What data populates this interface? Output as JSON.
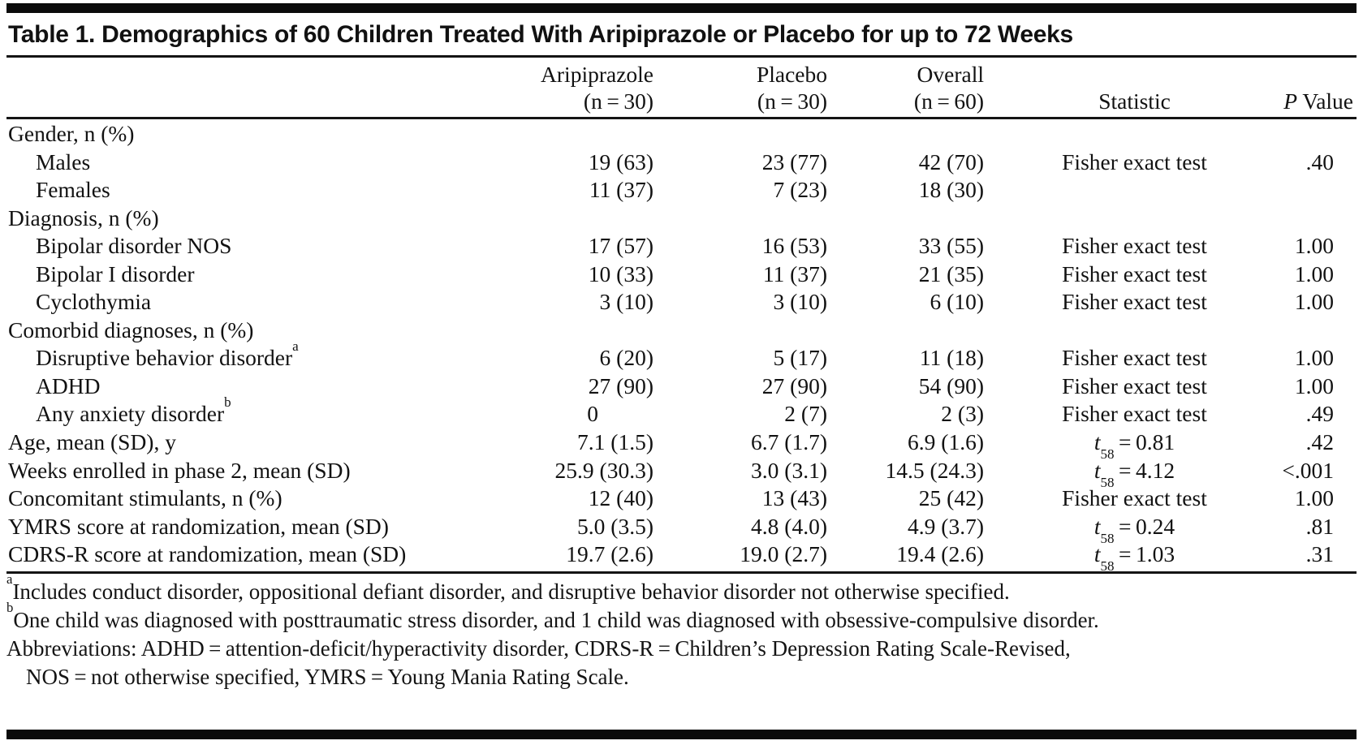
{
  "title": "Table 1. Demographics of 60 Children Treated With Aripiprazole or Placebo for up to 72 Weeks",
  "header": {
    "columns": [
      {
        "line1": "Aripiprazole",
        "line2": "(n = 30)"
      },
      {
        "line1": "Placebo",
        "line2": "(n = 30)"
      },
      {
        "line1": "Overall",
        "line2": "(n = 60)"
      },
      {
        "line1": "",
        "line2": "Statistic"
      },
      {
        "line1": "",
        "line2": "*P* Value"
      }
    ]
  },
  "rows": [
    {
      "label": "Gender, n (%)",
      "indent": 0,
      "arip": "",
      "placebo": "",
      "overall": "",
      "stat": "",
      "p": ""
    },
    {
      "label": "Males",
      "indent": 1,
      "arip": "19 (63)",
      "placebo": "23 (77)",
      "overall": "42 (70)",
      "stat": "Fisher exact test",
      "p": ".40"
    },
    {
      "label": "Females",
      "indent": 1,
      "arip": "11 (37)",
      "placebo": "7 (23)",
      "overall": "18 (30)",
      "stat": "",
      "p": ""
    },
    {
      "label": "Diagnosis, n (%)",
      "indent": 0,
      "arip": "",
      "placebo": "",
      "overall": "",
      "stat": "",
      "p": ""
    },
    {
      "label": "Bipolar disorder NOS",
      "indent": 1,
      "arip": "17 (57)",
      "placebo": "16 (53)",
      "overall": "33 (55)",
      "stat": "Fisher exact test",
      "p": "1.00"
    },
    {
      "label": "Bipolar I disorder",
      "indent": 1,
      "arip": "10 (33)",
      "placebo": "11 (37)",
      "overall": "21 (35)",
      "stat": "Fisher exact test",
      "p": "1.00"
    },
    {
      "label": "Cyclothymia",
      "indent": 1,
      "arip": "3 (10)",
      "placebo": "3 (10)",
      "overall": "6 (10)",
      "stat": "Fisher exact test",
      "p": "1.00"
    },
    {
      "label": "Comorbid diagnoses, n (%)",
      "indent": 0,
      "arip": "",
      "placebo": "",
      "overall": "",
      "stat": "",
      "p": ""
    },
    {
      "label": "Disruptive behavior disorder^{a}",
      "indent": 1,
      "arip": "6 (20)",
      "placebo": "5 (17)",
      "overall": "11 (18)",
      "stat": "Fisher exact test",
      "p": "1.00"
    },
    {
      "label": "ADHD",
      "indent": 1,
      "arip": "27 (90)",
      "placebo": "27 (90)",
      "overall": "54 (90)",
      "stat": "Fisher exact test",
      "p": "1.00"
    },
    {
      "label": "Any anxiety disorder^{b}",
      "indent": 1,
      "arip": "0",
      "arip_pad": "units",
      "placebo": "2 (7)",
      "overall": "2 (3)",
      "stat": "Fisher exact test",
      "p": ".49"
    },
    {
      "label": "Age, mean (SD), y",
      "indent": 0,
      "arip": "7.1 (1.5)",
      "placebo": "6.7 (1.7)",
      "overall": "6.9 (1.6)",
      "stat": "*t*_{58} = 0.81",
      "p": ".42"
    },
    {
      "label": "Weeks enrolled in phase 2, mean (SD)",
      "indent": 0,
      "arip": "25.9 (30.3)",
      "placebo": "3.0 (3.1)",
      "overall": "14.5 (24.3)",
      "stat": "*t*_{58} = 4.12",
      "p": "<.001"
    },
    {
      "label": "Concomitant stimulants, n (%)",
      "indent": 0,
      "arip": "12 (40)",
      "placebo": "13 (43)",
      "overall": "25 (42)",
      "stat": "Fisher exact test",
      "p": "1.00"
    },
    {
      "label": "YMRS score at randomization, mean (SD)",
      "indent": 0,
      "arip": "5.0 (3.5)",
      "placebo": "4.8 (4.0)",
      "overall": "4.9 (3.7)",
      "stat": "*t*_{58} = 0.24",
      "p": ".81"
    },
    {
      "label": "CDRS-R score at randomization, mean (SD)",
      "indent": 0,
      "arip": "19.7 (2.6)",
      "placebo": "19.0 (2.7)",
      "overall": "19.4 (2.6)",
      "stat": "*t*_{58} = 1.03",
      "p": ".31"
    }
  ],
  "footnotes": [
    {
      "text": "^{a}Includes conduct disorder, oppositional defiant disorder, and disruptive behavior disorder not otherwise specified.",
      "indent": 0
    },
    {
      "text": "^{b}One child was diagnosed with posttraumatic stress disorder, and 1 child was diagnosed with obsessive-compulsive disorder.",
      "indent": 0
    },
    {
      "text": "Abbreviations: ADHD = attention-deficit/hyperactivity disorder, CDRS-R = Children’s Depression Rating Scale-Revised,",
      "indent": 0
    },
    {
      "text": "NOS = not otherwise specified, YMRS = Young Mania Rating Scale.",
      "indent": 1
    }
  ]
}
